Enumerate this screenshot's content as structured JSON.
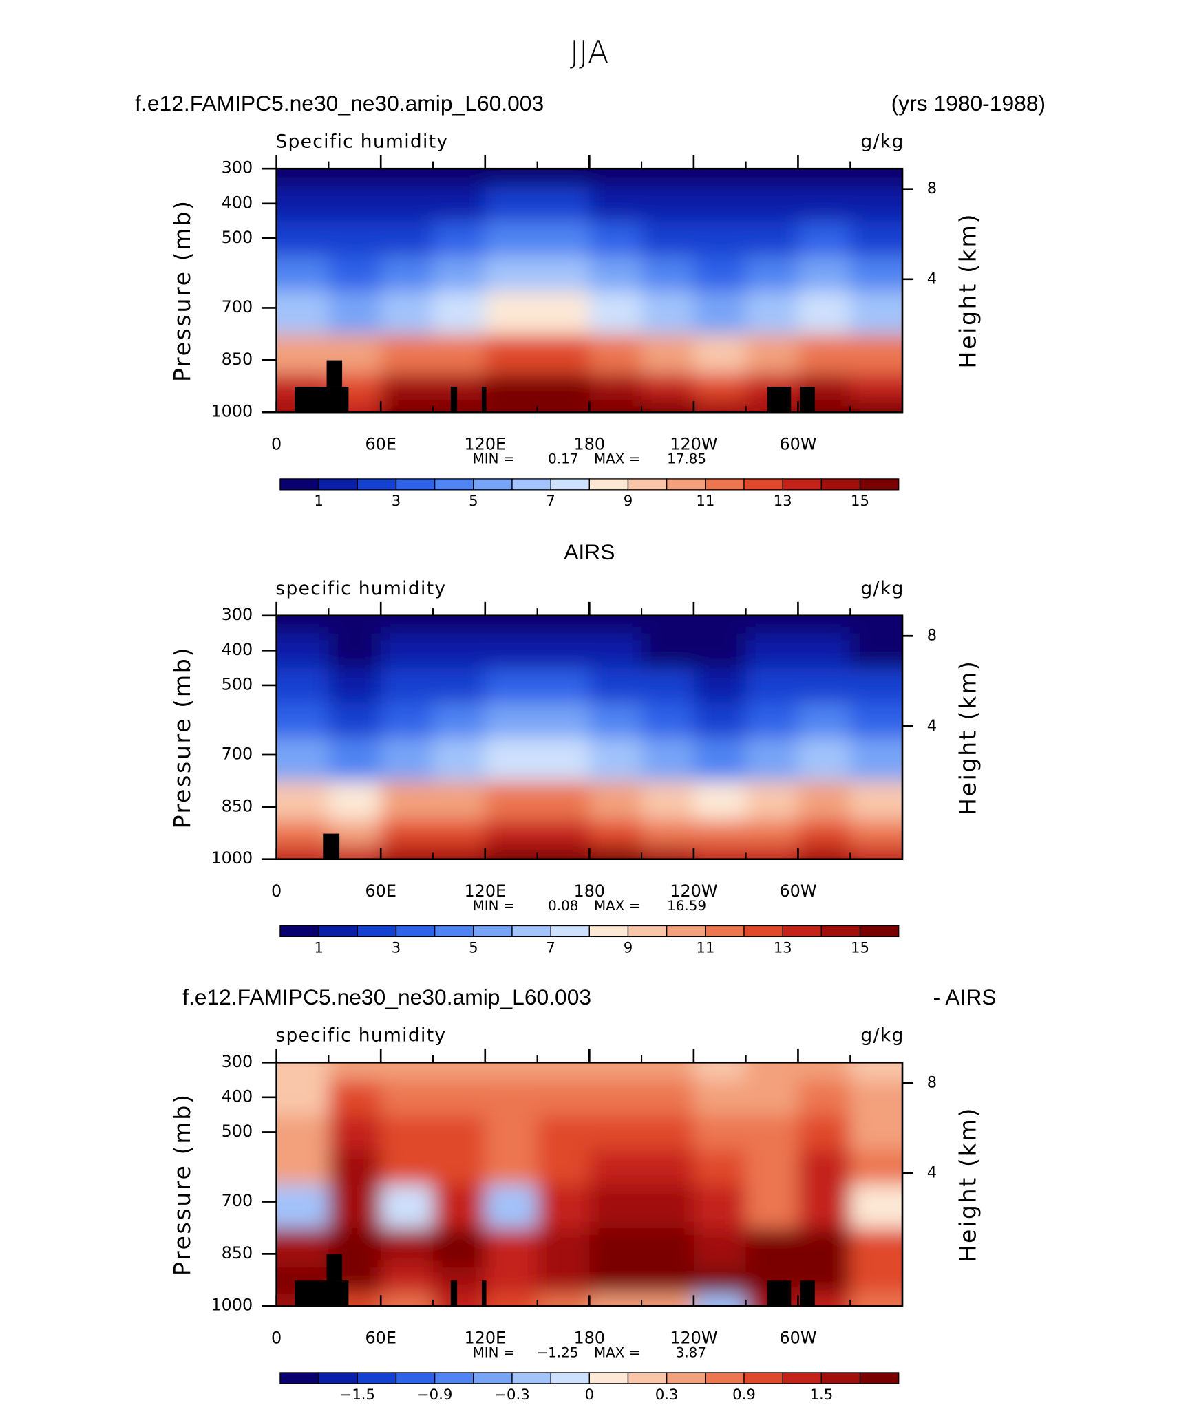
{
  "title": "JJA",
  "chart_data": [
    {
      "type": "contour",
      "title": "f.e12.FAMIPC5.ne30_ne30.amip_L60.003",
      "title_right": "(yrs 1980-1988)",
      "subtitle": "Specific humidity",
      "units": "g/kg",
      "y_label": "Pressure (mb)",
      "y2_label": "Height (km)",
      "x": [
        15,
        45,
        75,
        105,
        135,
        165,
        195,
        225,
        255,
        285,
        315,
        345
      ],
      "y": [
        1000,
        925,
        850,
        700,
        600,
        500,
        400,
        300
      ],
      "values": [
        [
          14,
          13,
          15,
          15,
          16,
          16,
          16,
          15,
          14,
          14,
          15,
          15
        ],
        [
          13,
          12,
          14,
          14,
          15,
          15,
          14,
          13,
          12,
          13,
          14,
          13
        ],
        [
          10,
          10,
          11,
          11,
          12,
          12,
          11,
          10,
          9,
          10,
          11,
          11
        ],
        [
          6,
          5,
          6,
          7,
          8,
          8,
          7,
          6,
          5,
          6,
          7,
          6
        ],
        [
          4,
          3,
          4,
          5,
          6,
          6,
          5,
          4,
          3,
          4,
          5,
          4
        ],
        [
          2.5,
          2,
          2.5,
          3,
          4,
          4,
          3,
          2.5,
          2,
          2.5,
          3,
          2.5
        ],
        [
          1,
          1,
          1.5,
          1.5,
          2,
          2,
          1.5,
          1,
          1,
          1.5,
          1.5,
          1
        ],
        [
          0.5,
          0.5,
          0.5,
          0.5,
          0.5,
          0.5,
          0.5,
          0.5,
          0.5,
          0.5,
          0.5,
          0.5
        ]
      ],
      "xlim": [
        0,
        360
      ],
      "xticks": [
        0,
        {
          "value": 60,
          "label": "60E"
        },
        {
          "value": 120,
          "label": "120E"
        },
        180,
        {
          "value": 240,
          "label": "120W"
        },
        {
          "value": 300,
          "label": "60W"
        }
      ],
      "xminorticks": [
        30,
        90,
        150,
        210,
        270,
        330
      ],
      "ylim": [
        1000,
        300
      ],
      "yticks": [
        1000,
        850,
        700,
        500,
        400,
        300
      ],
      "y2lim": [
        -1.9,
        8.9
      ],
      "y2ticks": [
        4,
        8
      ],
      "levels": [
        1,
        2,
        3,
        4,
        5,
        6,
        7,
        8,
        9,
        10,
        11,
        12,
        13,
        14,
        15
      ],
      "colors": [
        "#08006e",
        "#0a1fa8",
        "#1541d0",
        "#2e62e8",
        "#4f84f2",
        "#78a4f7",
        "#a2c3fb",
        "#cde0fd",
        "#fde8d6",
        "#f9c6aa",
        "#f3a07c",
        "#ec764f",
        "#e04a2c",
        "#c4231a",
        "#a10f0c",
        "#7a0000"
      ],
      "colorbar_ticks": [
        1,
        3,
        5,
        7,
        9,
        11,
        13,
        15
      ],
      "min_label": "MIN =",
      "min": 0.17,
      "max_label": "MAX =",
      "max": 17.85
    },
    {
      "type": "contour",
      "title": "AIRS",
      "subtitle": "specific humidity",
      "units": "g/kg",
      "y_label": "Pressure (mb)",
      "y2_label": "Height (km)",
      "x": [
        15,
        45,
        75,
        105,
        135,
        165,
        195,
        225,
        255,
        285,
        315,
        345
      ],
      "y": [
        1000,
        925,
        850,
        700,
        600,
        500,
        400,
        300
      ],
      "values": [
        [
          13,
          13,
          14,
          14,
          15,
          15,
          15,
          14,
          13,
          13,
          14,
          13
        ],
        [
          11,
          10,
          12,
          12,
          13,
          13,
          12,
          11,
          11,
          11,
          12,
          11
        ],
        [
          9,
          8,
          10,
          10,
          11,
          11,
          10,
          9,
          8,
          9,
          10,
          9
        ],
        [
          5,
          4,
          5,
          6,
          7,
          7,
          6,
          5,
          4,
          5,
          6,
          5
        ],
        [
          3.5,
          2.5,
          3.5,
          4,
          5,
          5,
          4,
          3,
          2.5,
          3.5,
          4,
          3.5
        ],
        [
          2,
          1.5,
          2,
          2.5,
          3,
          3,
          2.5,
          2,
          1.5,
          2,
          2.5,
          2
        ],
        [
          1,
          0.8,
          1,
          1.2,
          1.5,
          1.5,
          1,
          0.8,
          0.8,
          1,
          1,
          0.8
        ],
        [
          0.3,
          0.3,
          0.3,
          0.3,
          0.3,
          0.3,
          0.3,
          0.3,
          0.3,
          0.3,
          0.3,
          0.3
        ]
      ],
      "xlim": [
        0,
        360
      ],
      "xticks": [
        0,
        {
          "value": 60,
          "label": "60E"
        },
        {
          "value": 120,
          "label": "120E"
        },
        180,
        {
          "value": 240,
          "label": "120W"
        },
        {
          "value": 300,
          "label": "60W"
        }
      ],
      "xminorticks": [
        30,
        90,
        150,
        210,
        270,
        330
      ],
      "ylim": [
        1000,
        300
      ],
      "yticks": [
        1000,
        850,
        700,
        500,
        400,
        300
      ],
      "y2lim": [
        -1.9,
        8.9
      ],
      "y2ticks": [
        4,
        8
      ],
      "levels": [
        1,
        2,
        3,
        4,
        5,
        6,
        7,
        8,
        9,
        10,
        11,
        12,
        13,
        14,
        15
      ],
      "colors": [
        "#08006e",
        "#0a1fa8",
        "#1541d0",
        "#2e62e8",
        "#4f84f2",
        "#78a4f7",
        "#a2c3fb",
        "#cde0fd",
        "#fde8d6",
        "#f9c6aa",
        "#f3a07c",
        "#ec764f",
        "#e04a2c",
        "#c4231a",
        "#a10f0c",
        "#7a0000"
      ],
      "colorbar_ticks": [
        1,
        3,
        5,
        7,
        9,
        11,
        13,
        15
      ],
      "min_label": "MIN =",
      "min": 0.08,
      "max_label": "MAX =",
      "max": 16.59
    },
    {
      "type": "contour",
      "title": "f.e12.FAMIPC5.ne30_ne30.amip_L60.003",
      "title_right": "- AIRS",
      "subtitle": "specific humidity",
      "units": "g/kg",
      "y_label": "Pressure (mb)",
      "y2_label": "Height (km)",
      "x": [
        15,
        45,
        75,
        105,
        135,
        165,
        195,
        225,
        255,
        285,
        315,
        345
      ],
      "y": [
        1000,
        925,
        850,
        700,
        600,
        500,
        400,
        300
      ],
      "values": [
        [
          1.5,
          0.9,
          0.6,
          1.2,
          0.9,
          0.6,
          0.3,
          0.3,
          -0.3,
          1.5,
          1.2,
          0.6
        ],
        [
          1.8,
          2,
          1.2,
          1.5,
          1.2,
          1.5,
          2,
          2,
          1.8,
          2,
          2,
          0.9
        ],
        [
          1.5,
          2.2,
          1.5,
          1.8,
          1.2,
          1.5,
          2.2,
          2.2,
          1.5,
          2,
          1.8,
          0.9
        ],
        [
          -0.3,
          1.5,
          -0.1,
          1.2,
          -0.2,
          1.2,
          1.5,
          1.5,
          1.2,
          0.6,
          1.2,
          0
        ],
        [
          0.3,
          1.5,
          0.9,
          0.9,
          0.6,
          0.9,
          1.2,
          1.2,
          0.9,
          0.6,
          1.2,
          0.6
        ],
        [
          0.3,
          1.2,
          0.9,
          0.9,
          0.6,
          0.9,
          0.9,
          0.9,
          0.6,
          0.6,
          0.9,
          0.3
        ],
        [
          0.1,
          0.9,
          0.6,
          0.6,
          0.6,
          0.6,
          0.6,
          0.6,
          0.3,
          0.3,
          0.6,
          0.3
        ],
        [
          0.1,
          0.3,
          0.3,
          0.3,
          0.3,
          0.3,
          0.3,
          0.3,
          0.1,
          0.3,
          0.3,
          0.1
        ]
      ],
      "xlim": [
        0,
        360
      ],
      "xticks": [
        0,
        {
          "value": 60,
          "label": "60E"
        },
        {
          "value": 120,
          "label": "120E"
        },
        180,
        {
          "value": 240,
          "label": "120W"
        },
        {
          "value": 300,
          "label": "60W"
        }
      ],
      "xminorticks": [
        30,
        90,
        150,
        210,
        270,
        330
      ],
      "ylim": [
        1000,
        300
      ],
      "yticks": [
        1000,
        850,
        700,
        500,
        400,
        300
      ],
      "y2lim": [
        -1.9,
        8.9
      ],
      "y2ticks": [
        4,
        8
      ],
      "levels": [
        -1.8,
        -1.5,
        -1.2,
        -0.9,
        -0.6,
        -0.3,
        -0.1,
        0,
        0.1,
        0.3,
        0.6,
        0.9,
        1.2,
        1.5,
        1.8
      ],
      "colors": [
        "#08006e",
        "#0a1fa8",
        "#1541d0",
        "#2e62e8",
        "#4f84f2",
        "#78a4f7",
        "#a2c3fb",
        "#cde0fd",
        "#fde8d6",
        "#f9c6aa",
        "#f3a07c",
        "#ec764f",
        "#e04a2c",
        "#c4231a",
        "#a10f0c",
        "#7a0000"
      ],
      "colorbar_ticks": [
        {
          "value": -1.5,
          "label": "−1.5"
        },
        {
          "value": -0.9,
          "label": "−0.9"
        },
        {
          "value": -0.3,
          "label": "−0.3"
        },
        0,
        0.3,
        0.9,
        1.5
      ],
      "min_label": "MIN =",
      "min": {
        "value": -1.25,
        "label": "−1.25"
      },
      "max_label": "MAX =",
      "max": 3.87
    }
  ]
}
